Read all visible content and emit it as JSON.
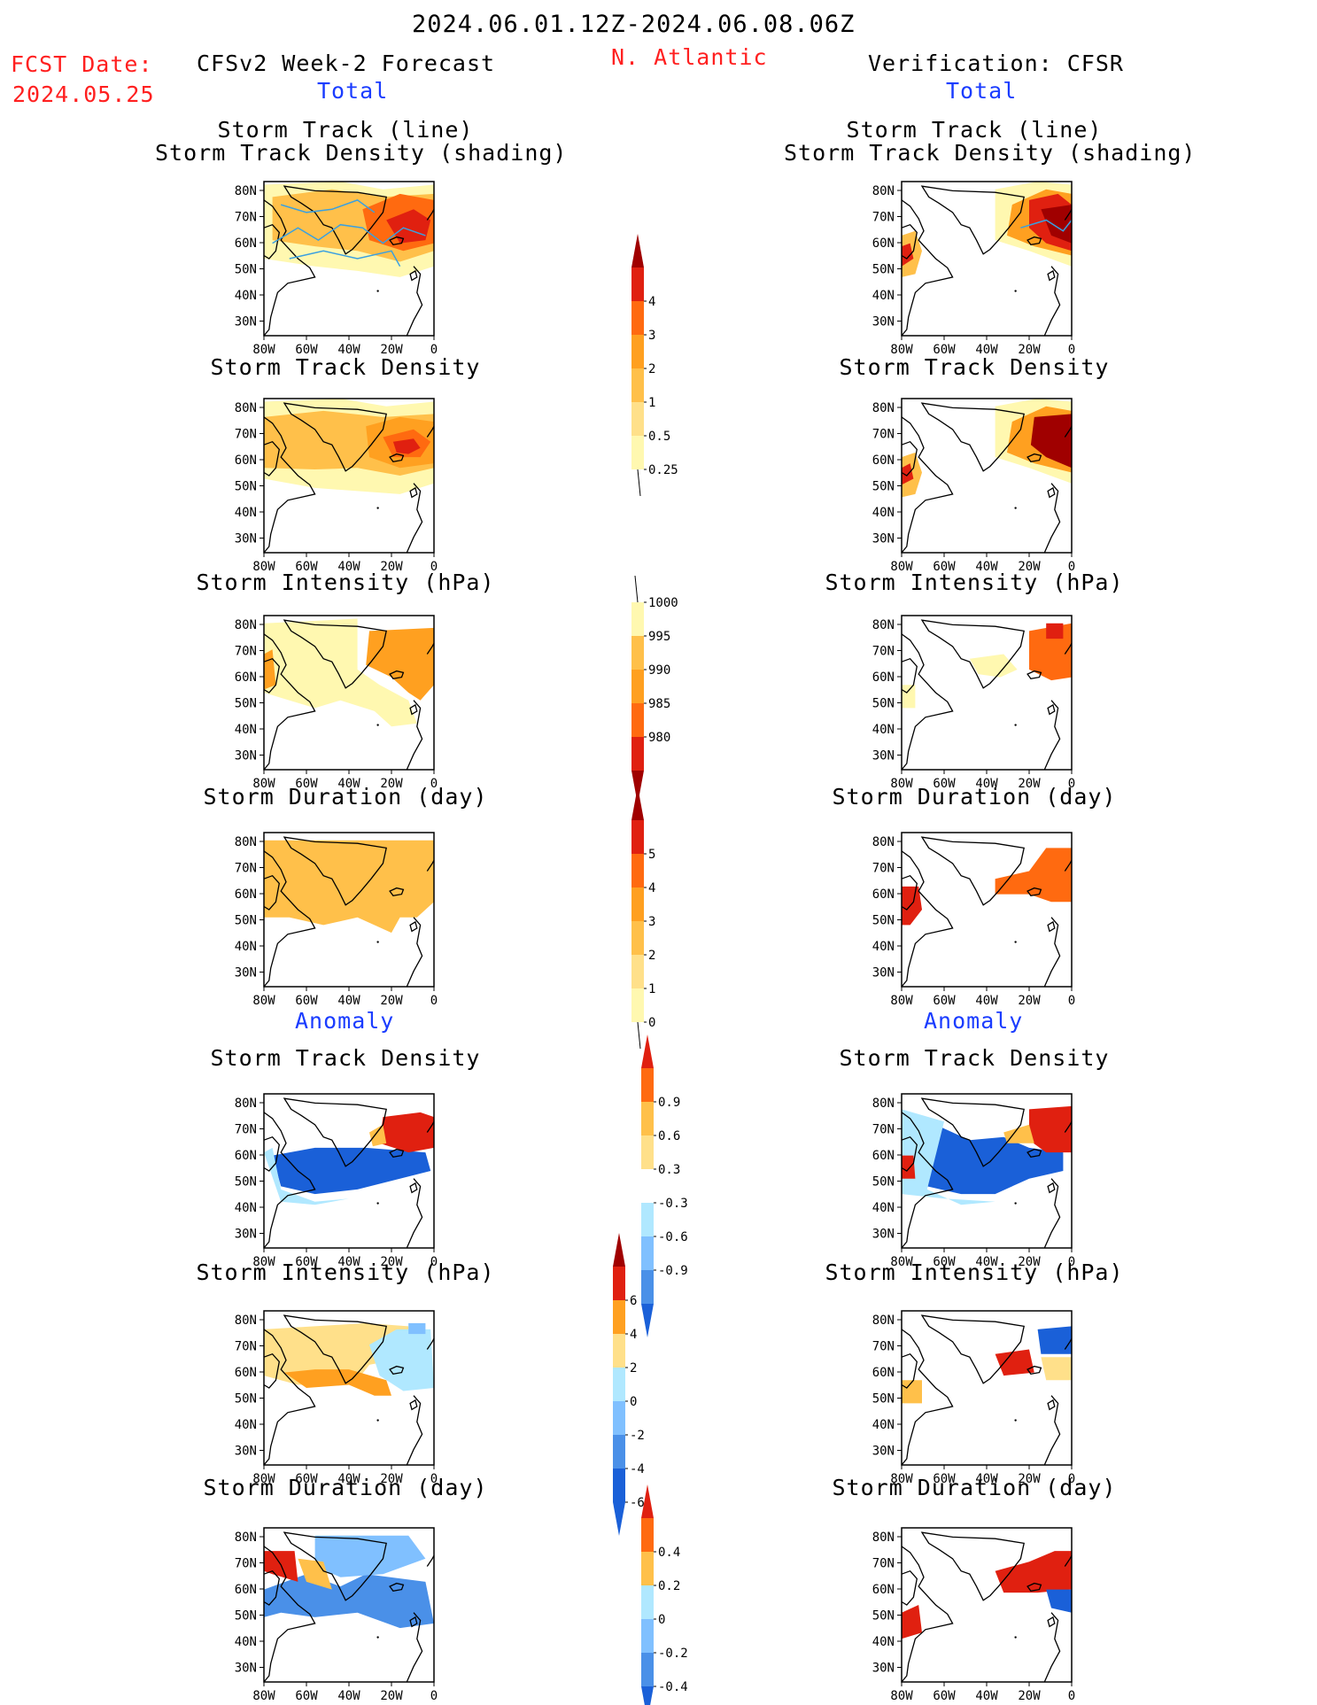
{
  "header": {
    "date_range": "2024.06.01.12Z-2024.06.08.06Z",
    "fcst_label": "FCST Date:",
    "fcst_date": "2024.05.25",
    "model_title": "CFSv2 Week-2 Forecast",
    "region": "N. Atlantic",
    "verification_title": "Verification: CFSR",
    "total_left": "Total",
    "total_right": "Total",
    "anomaly_left": "Anomaly",
    "anomaly_right": "Anomaly"
  },
  "panel_titles": {
    "p1_line1": "Storm Track (line)",
    "p1_line2": "Storm Track Density (shading)",
    "p2": "Storm Track Density",
    "p3": "Storm Intensity (hPa)",
    "p4": "Storm Duration (day)",
    "p5": "Storm Track Density",
    "p6": "Storm Intensity (hPa)",
    "p7": "Storm Duration (day)"
  },
  "axes": {
    "lat_labels": [
      "80N",
      "70N",
      "60N",
      "50N",
      "40N",
      "30N"
    ],
    "lon_labels": [
      "80W",
      "60W",
      "40W",
      "20W",
      "0"
    ]
  },
  "colorbars": {
    "density_total": [
      "4",
      "3",
      "2",
      "1",
      "0.5",
      "0.25"
    ],
    "intensity_total": [
      "1000",
      "995",
      "990",
      "985",
      "980"
    ],
    "duration_total": [
      "5",
      "4",
      "3",
      "2",
      "1",
      "0"
    ],
    "density_anom": [
      "0.9",
      "0.6",
      "0.3",
      "-0.3",
      "-0.6",
      "-0.9"
    ],
    "intensity_anom": [
      "6",
      "4",
      "2",
      "0",
      "-2",
      "-4",
      "-6"
    ],
    "duration_anom": [
      "0.4",
      "0.2",
      "0",
      "-0.2",
      "-0.4"
    ]
  },
  "colors": {
    "warm": [
      "#fff8b0",
      "#ffe08a",
      "#ffc04a",
      "#ffa020",
      "#ff6a10",
      "#e02010",
      "#a00000"
    ],
    "cool": [
      "#ffffff",
      "#b0e8ff",
      "#80c0ff",
      "#4a90e8",
      "#1a60d8"
    ],
    "title_red": "#ff2020",
    "title_blue": "#1a3cff"
  }
}
